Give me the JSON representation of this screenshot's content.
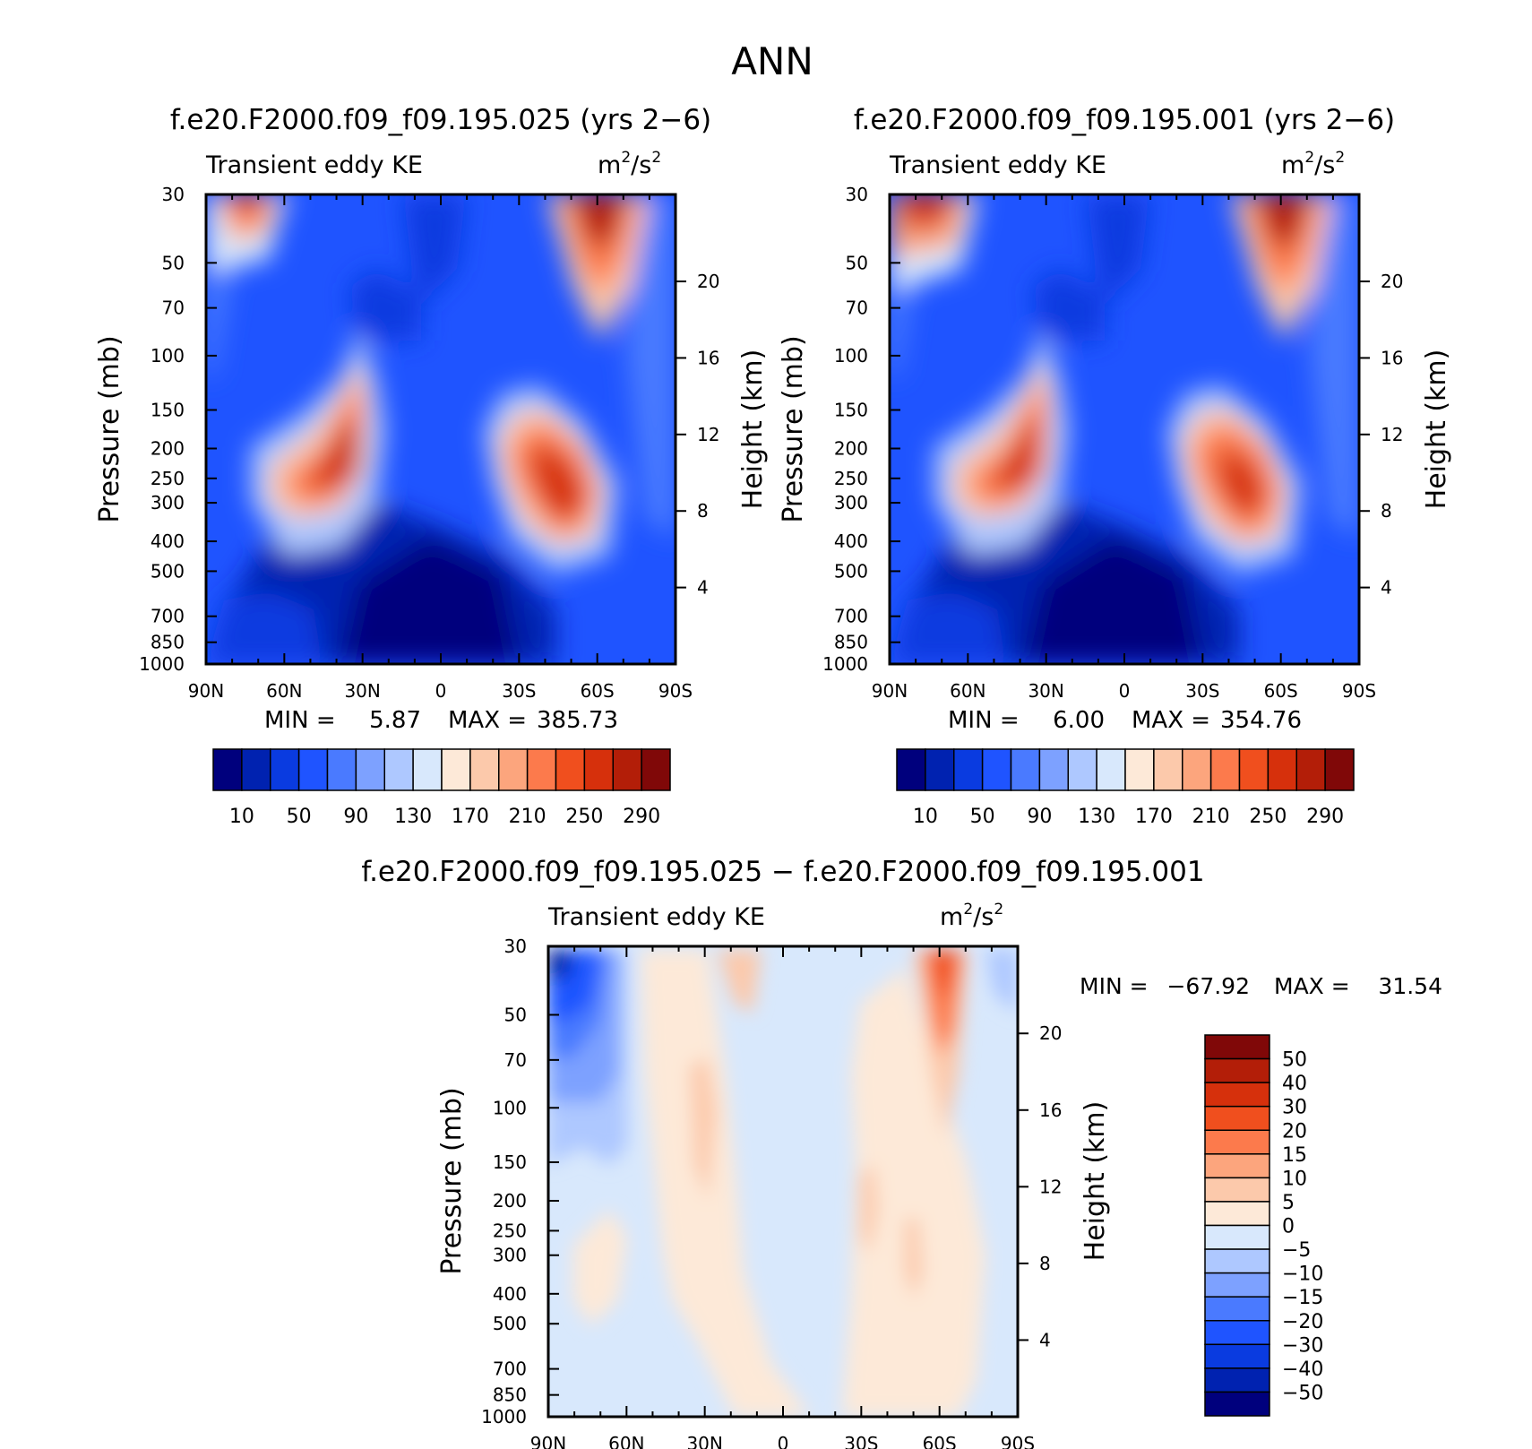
{
  "main_title": "ANN",
  "colors": {
    "blue_to_red_16": [
      "#00007d",
      "#0022b0",
      "#0a3be0",
      "#1f54ff",
      "#4a7aff",
      "#7da1ff",
      "#aec8ff",
      "#d8e8fc",
      "#fde9d8",
      "#fcc9ab",
      "#fca57d",
      "#fc7a4c",
      "#f04f1e",
      "#d6300c",
      "#b31e08",
      "#800808"
    ],
    "diff_16": [
      "#00007d",
      "#0022b0",
      "#0a3be0",
      "#1f54ff",
      "#4a7aff",
      "#7da1ff",
      "#aec8ff",
      "#d8e8fc",
      "#fde9d8",
      "#fcc9ab",
      "#fca57d",
      "#fc7a4c",
      "#f04f1e",
      "#d6300c",
      "#b31e08",
      "#800808"
    ]
  },
  "chart_data": [
    {
      "type": "heatmap",
      "title": "f.e20.F2000.f09_f09.195.025 (yrs 2−6)",
      "subtitle_left": "Transient eddy KE",
      "units_base": "m",
      "units_exp": "2",
      "units_mid": "/s",
      "units_exp2": "2",
      "ylabel": "Pressure (mb)",
      "y2label": "Height (km)",
      "xticks": [
        "90N",
        "60N",
        "30N",
        "0",
        "30S",
        "60S",
        "90S"
      ],
      "yticks": [
        "30",
        "50",
        "70",
        "100",
        "150",
        "200",
        "250",
        "300",
        "400",
        "500",
        "700",
        "850",
        "1000"
      ],
      "y2ticks": [
        "20",
        "16",
        "12",
        "8",
        "4"
      ],
      "min_label": "MIN =",
      "min_value": "5.87",
      "max_label": "MAX =",
      "max_value": "385.73",
      "colorbar_labels": [
        "10",
        "50",
        "90",
        "130",
        "170",
        "210",
        "250",
        "290"
      ],
      "palette": "blue_to_red_16"
    },
    {
      "type": "heatmap",
      "title": "f.e20.F2000.f09_f09.195.001 (yrs 2−6)",
      "subtitle_left": "Transient eddy KE",
      "units_base": "m",
      "units_exp": "2",
      "units_mid": "/s",
      "units_exp2": "2",
      "ylabel": "Pressure (mb)",
      "y2label": "Height (km)",
      "xticks": [
        "90N",
        "60N",
        "30N",
        "0",
        "30S",
        "60S",
        "90S"
      ],
      "yticks": [
        "30",
        "50",
        "70",
        "100",
        "150",
        "200",
        "250",
        "300",
        "400",
        "500",
        "700",
        "850",
        "1000"
      ],
      "y2ticks": [
        "20",
        "16",
        "12",
        "8",
        "4"
      ],
      "min_label": "MIN =",
      "min_value": "6.00",
      "max_label": "MAX =",
      "max_value": "354.76",
      "colorbar_labels": [
        "10",
        "50",
        "90",
        "130",
        "170",
        "210",
        "250",
        "290"
      ],
      "palette": "blue_to_red_16"
    },
    {
      "type": "heatmap",
      "title": "f.e20.F2000.f09_f09.195.025 − f.e20.F2000.f09_f09.195.001",
      "subtitle_left": "Transient eddy KE",
      "units_base": "m",
      "units_exp": "2",
      "units_mid": "/s",
      "units_exp2": "2",
      "ylabel": "Pressure (mb)",
      "y2label": "Height (km)",
      "xticks": [
        "90N",
        "60N",
        "30N",
        "0",
        "30S",
        "60S",
        "90S"
      ],
      "yticks": [
        "30",
        "50",
        "70",
        "100",
        "150",
        "200",
        "250",
        "300",
        "400",
        "500",
        "700",
        "850",
        "1000"
      ],
      "y2ticks": [
        "20",
        "16",
        "12",
        "8",
        "4"
      ],
      "min_label": "MIN =",
      "min_value": "−67.92",
      "max_label": "MAX =",
      "max_value": "31.54",
      "colorbar_labels": [
        "50",
        "40",
        "30",
        "20",
        "15",
        "10",
        "5",
        "0",
        "−5",
        "−10",
        "−15",
        "−20",
        "−30",
        "−40",
        "−50"
      ],
      "palette": "diff_16"
    }
  ]
}
